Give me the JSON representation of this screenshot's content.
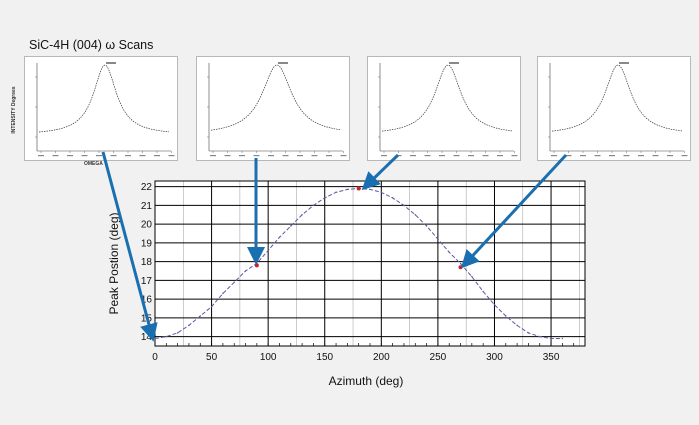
{
  "title": "SiC-4H (004) ω  Scans",
  "scan_panels": {
    "ylabel": "INTENSITY Degrees",
    "xlabel": "OMEGA",
    "peak_positions": [
      13.9,
      17.9,
      21.9,
      17.9
    ]
  },
  "colors": {
    "background": "#f1f1f1",
    "arrow": "#1a6fb0",
    "curve": "#5a5aa0",
    "marker": "#cc2222",
    "grid_major": "#000000",
    "grid_minor": "#aaaaaa"
  },
  "chart_data": {
    "type": "line",
    "xlabel": "Azimuth (deg)",
    "ylabel": "Peak Postion (deg)",
    "xlim": [
      0,
      380
    ],
    "ylim": [
      13.5,
      22.3
    ],
    "xticks": [
      0,
      50,
      100,
      150,
      200,
      250,
      300,
      350
    ],
    "yticks": [
      14,
      15,
      16,
      17,
      18,
      19,
      20,
      21,
      22
    ],
    "grid": true,
    "series": [
      {
        "x": [
          0,
          10,
          20,
          30,
          40,
          50,
          60,
          70,
          80,
          90,
          100,
          110,
          120,
          130,
          140,
          150,
          160,
          170,
          180,
          190,
          200,
          210,
          220,
          230,
          240,
          250,
          260,
          270,
          280,
          290,
          300,
          310,
          320,
          330,
          340,
          350,
          360
        ],
        "values": [
          13.9,
          14.0,
          14.2,
          14.6,
          15.1,
          15.6,
          16.3,
          16.9,
          17.5,
          17.9,
          18.6,
          19.3,
          19.9,
          20.5,
          21.0,
          21.4,
          21.7,
          21.85,
          21.9,
          21.85,
          21.7,
          21.4,
          21.0,
          20.5,
          19.9,
          19.2,
          18.5,
          17.9,
          17.2,
          16.4,
          15.7,
          15.1,
          14.6,
          14.2,
          14.0,
          13.9,
          13.9
        ]
      }
    ],
    "markers": [
      {
        "x": 90,
        "y": 17.8
      },
      {
        "x": 180,
        "y": 21.9
      },
      {
        "x": 270,
        "y": 17.7
      }
    ]
  }
}
